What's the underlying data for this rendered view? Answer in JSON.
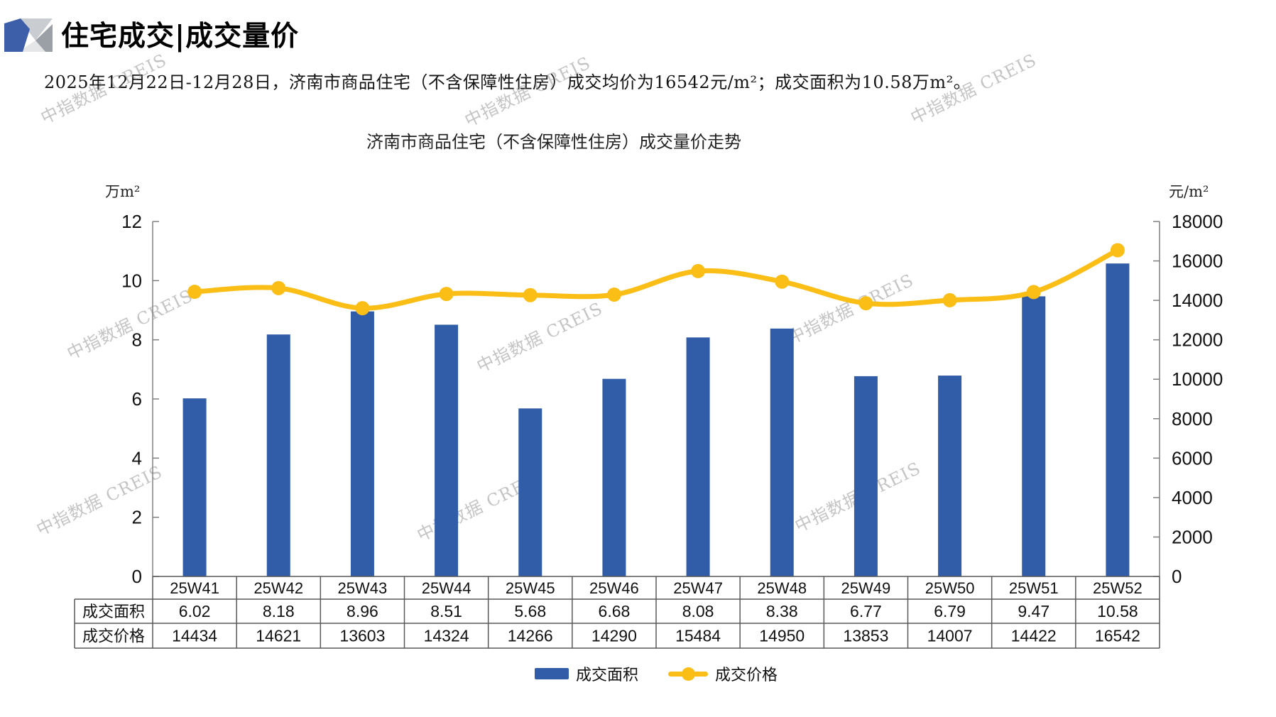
{
  "header": {
    "title": "住宅成交|成交量价",
    "subtitle": "2025年12月22日-12月28日，济南市商品住宅（不含保障性住房）成交均价为16542元/m²；成交面积为10.58万m²。"
  },
  "watermark": {
    "text": "中指数据 CREIS"
  },
  "chart_data": {
    "type": "bar",
    "combo": "bar+line",
    "title": "济南市商品住宅（不含保障性住房）成交量价走势",
    "categories": [
      "25W41",
      "25W42",
      "25W43",
      "25W44",
      "25W45",
      "25W46",
      "25W47",
      "25W48",
      "25W49",
      "25W50",
      "25W51",
      "25W52"
    ],
    "series": [
      {
        "name": "成交面积",
        "type": "bar",
        "axis": "left",
        "color": "#315CA8",
        "decimals": 2,
        "values": [
          6.02,
          8.18,
          8.96,
          8.51,
          5.68,
          6.68,
          8.08,
          8.38,
          6.77,
          6.79,
          9.47,
          10.58
        ]
      },
      {
        "name": "成交价格",
        "type": "line",
        "axis": "right",
        "color": "#FBBE17",
        "decimals": 0,
        "values": [
          14434,
          14621,
          13603,
          14324,
          14266,
          14290,
          15484,
          14950,
          13853,
          14007,
          14422,
          16542
        ]
      }
    ],
    "left_axis": {
      "label": "万m²",
      "min": 0,
      "max": 12,
      "ticks": [
        0,
        2,
        4,
        6,
        8,
        10,
        12
      ]
    },
    "right_axis": {
      "label": "元/m²",
      "min": 0,
      "max": 18000,
      "ticks": [
        0,
        2000,
        4000,
        6000,
        8000,
        10000,
        12000,
        14000,
        16000,
        18000
      ]
    },
    "grid": false,
    "legend_position": "bottom",
    "data_table_shown": true
  },
  "colors": {
    "bar": "#315CA8",
    "line": "#FBBE17",
    "axis": "#808080",
    "table_border": "#595959",
    "logo_blue": "#3D5EA9",
    "logo_gray_light": "#C9CDD2",
    "logo_gray_mid": "#9AA0A6",
    "logo_gray_pale": "#E4E6E8"
  }
}
